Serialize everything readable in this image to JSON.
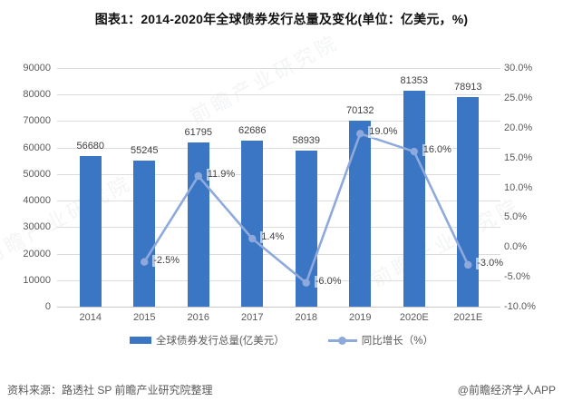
{
  "title": "图表1：2014-2020年全球债券发行总量及变化(单位：亿美元，%)",
  "watermark": "前瞻产业研究院",
  "source": {
    "left": "资料来源：路透社 SP 前瞻产业研究院整理",
    "right": "@前瞻经济学人APP"
  },
  "colors": {
    "bar": "#3B76C4",
    "line": "#8EA9DC",
    "grid": "#DCDCDC",
    "baseline": "#C9C9C9",
    "axis_text": "#595959",
    "label_text": "#404040"
  },
  "chart_data": {
    "type": "bar+line",
    "categories": [
      "2014",
      "2015",
      "2016",
      "2017",
      "2018",
      "2019",
      "2020E",
      "2021E"
    ],
    "series": [
      {
        "name": "全球债券发行总量(亿美元）",
        "type": "bar",
        "axis": "left",
        "values": [
          56680,
          55245,
          61795,
          62686,
          58939,
          70132,
          81353,
          78913
        ]
      },
      {
        "name": "同比增长（%）",
        "type": "line",
        "axis": "right",
        "values": [
          null,
          -2.5,
          11.9,
          1.4,
          -6.0,
          19.0,
          16.0,
          -3.0
        ]
      }
    ],
    "left_axis": {
      "min": 0,
      "max": 90000,
      "step": 10000
    },
    "right_axis": {
      "min": -10,
      "max": 30,
      "step": 5,
      "suffix": "%"
    },
    "grid": true,
    "legend_position": "bottom"
  }
}
